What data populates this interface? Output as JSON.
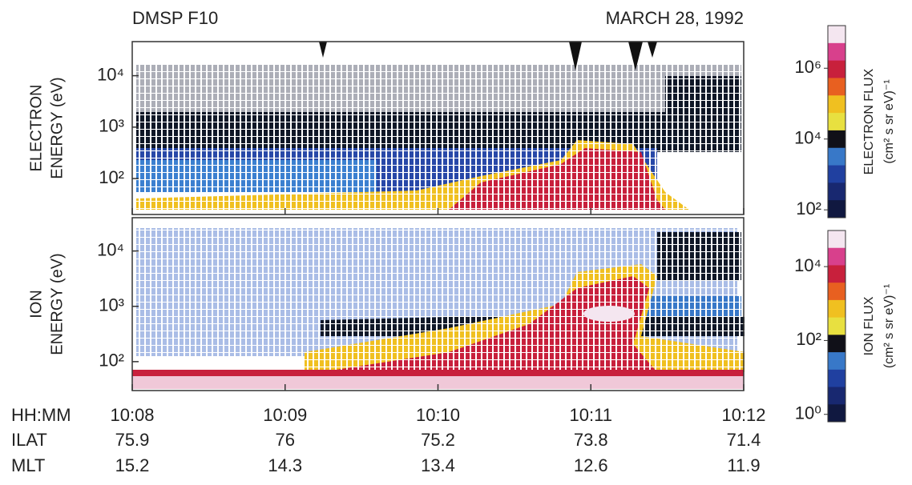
{
  "chart_data": {
    "type": "spectrogram",
    "title": "DMSP F10",
    "date": "MARCH 28, 1992",
    "x": [
      "10:08",
      "10:09",
      "10:10",
      "10:11",
      "10:12"
    ],
    "x_label": "HH:MM",
    "rows": [
      {
        "label": "ILAT",
        "values": [
          75.9,
          76.0,
          75.2,
          73.8,
          71.4
        ]
      },
      {
        "label": "MLT",
        "values": [
          15.2,
          14.3,
          13.4,
          12.6,
          11.9
        ]
      }
    ],
    "log": true,
    "panels": [
      {
        "ylabel": [
          "ELECTRON",
          "ENERGY (eV)"
        ],
        "ylim": [
          20,
          46000
        ],
        "yticks": [
          {
            "value": 100,
            "label": "10²"
          },
          {
            "value": 1000,
            "label": "10³"
          },
          {
            "value": 10000,
            "label": "10⁴"
          }
        ],
        "colorbar": {
          "label": "ELECTRON FLUX",
          "units": "(cm² s sr eV)⁻¹",
          "clim": [
            60,
            16000000
          ],
          "ticks": [
            {
              "value": 100,
              "label": "10²"
            },
            {
              "value": 10000,
              "label": "10⁴"
            },
            {
              "value": 1000000,
              "label": "10⁶"
            }
          ],
          "colors": [
            "#f4e6f0",
            "#d8408c",
            "#c8203c",
            "#e86020",
            "#f0c020",
            "#e8e040",
            "#101018",
            "#3878c8",
            "#2040a0",
            "#182870",
            "#101840"
          ]
        }
      },
      {
        "ylabel": [
          "ION",
          "ENERGY (eV)"
        ],
        "ylim": [
          30,
          40000
        ],
        "yticks": [
          {
            "value": 100,
            "label": "10²"
          },
          {
            "value": 1000,
            "label": "10³"
          },
          {
            "value": 10000,
            "label": "10⁴"
          }
        ],
        "colorbar": {
          "label": "ION FLUX",
          "units": "(cm² s sr eV)⁻¹",
          "clim": [
            0.63,
            95000
          ],
          "ticks": [
            {
              "value": 1,
              "label": "10⁰"
            },
            {
              "value": 100,
              "label": "10²"
            },
            {
              "value": 10000,
              "label": "10⁴"
            }
          ],
          "colors": [
            "#f4e6f0",
            "#d8408c",
            "#c8203c",
            "#e86020",
            "#f0c020",
            "#e8e040",
            "#101018",
            "#3878c8",
            "#2040a0",
            "#182870",
            "#101840"
          ]
        }
      }
    ]
  }
}
